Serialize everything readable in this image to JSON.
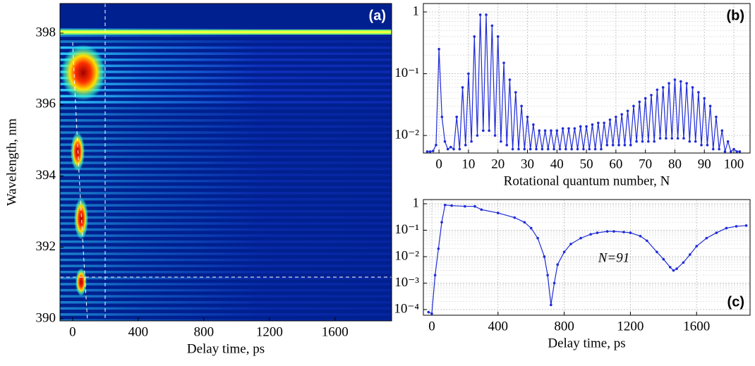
{
  "chart_data": [
    {
      "type": "heatmap",
      "panel_label": "(a)",
      "xlabel": "Delay time, ps",
      "ylabel": "Wavelength, nm",
      "xlim": [
        -77,
        1945
      ],
      "ylim": [
        389.94,
        398.83
      ],
      "xticks": [
        0,
        400,
        800,
        1200,
        1600
      ],
      "yticks": [
        390,
        392,
        394,
        396,
        398
      ]
    },
    {
      "type": "line",
      "panel_label": "(b)",
      "xlabel": "Rotational quantum number, N",
      "log_y": true,
      "grid": true,
      "color": "#1f2bd6",
      "xlim": [
        -5.3,
        105.5
      ],
      "ylim": [
        0.0052,
        1.37
      ],
      "xticks": [
        0,
        10,
        20,
        30,
        40,
        50,
        60,
        70,
        80,
        90,
        100
      ],
      "yticks": [
        {
          "value": 0.01,
          "label": "10⁻²"
        },
        {
          "value": 0.1,
          "label": "10⁻¹"
        },
        1
      ],
      "x": [
        -4,
        -3,
        -2,
        -1,
        0,
        1,
        2,
        3,
        4,
        5,
        6,
        7,
        8,
        9,
        10,
        11,
        12,
        13,
        14,
        15,
        16,
        17,
        18,
        19,
        20,
        21,
        22,
        23,
        24,
        25,
        26,
        27,
        28,
        29,
        30,
        31,
        32,
        33,
        34,
        35,
        36,
        37,
        38,
        39,
        40,
        41,
        42,
        43,
        44,
        45,
        46,
        47,
        48,
        49,
        50,
        51,
        52,
        53,
        54,
        55,
        56,
        57,
        58,
        59,
        60,
        61,
        62,
        63,
        64,
        65,
        66,
        67,
        68,
        69,
        70,
        71,
        72,
        73,
        74,
        75,
        76,
        77,
        78,
        79,
        80,
        81,
        82,
        83,
        84,
        85,
        86,
        87,
        88,
        89,
        90,
        91,
        92,
        93,
        94,
        95,
        96,
        97,
        98,
        99,
        100,
        101,
        102
      ],
      "values": [
        0.0055,
        0.0055,
        0.0056,
        0.007,
        0.25,
        0.02,
        0.008,
        0.006,
        0.0065,
        0.006,
        0.02,
        0.006,
        0.06,
        0.007,
        0.1,
        0.008,
        0.4,
        0.01,
        0.9,
        0.012,
        0.9,
        0.012,
        0.6,
        0.01,
        0.4,
        0.008,
        0.15,
        0.007,
        0.08,
        0.006,
        0.05,
        0.006,
        0.03,
        0.006,
        0.02,
        0.006,
        0.015,
        0.006,
        0.012,
        0.006,
        0.012,
        0.006,
        0.012,
        0.006,
        0.012,
        0.006,
        0.013,
        0.006,
        0.013,
        0.006,
        0.013,
        0.006,
        0.014,
        0.006,
        0.014,
        0.006,
        0.015,
        0.006,
        0.016,
        0.006,
        0.016,
        0.007,
        0.018,
        0.007,
        0.02,
        0.007,
        0.022,
        0.007,
        0.025,
        0.007,
        0.03,
        0.008,
        0.035,
        0.008,
        0.04,
        0.008,
        0.045,
        0.008,
        0.055,
        0.009,
        0.06,
        0.009,
        0.07,
        0.009,
        0.08,
        0.009,
        0.075,
        0.009,
        0.07,
        0.008,
        0.06,
        0.008,
        0.05,
        0.007,
        0.04,
        0.007,
        0.03,
        0.006,
        0.02,
        0.006,
        0.012,
        0.0055,
        0.008,
        0.0055,
        0.006,
        0.0055,
        0.0055
      ]
    },
    {
      "type": "line",
      "panel_label": "(c)",
      "xlabel": "Delay time, ps",
      "annotation": "N=91",
      "log_y": true,
      "grid": true,
      "color": "#1f2bd6",
      "xlim": [
        -51,
        1923
      ],
      "ylim": [
        6.1e-05,
        1.44
      ],
      "xticks": [
        0,
        400,
        800,
        1200,
        1600
      ],
      "yticks": [
        {
          "value": 0.0001,
          "label": "10⁻⁴"
        },
        {
          "value": 0.001,
          "label": "10⁻³"
        },
        {
          "value": 0.01,
          "label": "10⁻²"
        },
        {
          "value": 0.1,
          "label": "10⁻¹"
        },
        1
      ],
      "x": [
        -20,
        0,
        20,
        40,
        60,
        80,
        120,
        200,
        260,
        300,
        400,
        500,
        560,
        600,
        640,
        680,
        700,
        720,
        740,
        760,
        800,
        840,
        900,
        960,
        1000,
        1060,
        1100,
        1160,
        1200,
        1260,
        1300,
        1360,
        1400,
        1440,
        1460,
        1480,
        1520,
        1560,
        1600,
        1660,
        1720,
        1780,
        1840,
        1900
      ],
      "values": [
        8e-05,
        7e-05,
        0.002,
        0.02,
        0.2,
        0.9,
        0.85,
        0.8,
        0.8,
        0.6,
        0.45,
        0.3,
        0.2,
        0.12,
        0.05,
        0.01,
        0.002,
        0.00015,
        0.001,
        0.005,
        0.015,
        0.03,
        0.05,
        0.07,
        0.08,
        0.09,
        0.09,
        0.085,
        0.08,
        0.06,
        0.04,
        0.015,
        0.008,
        0.004,
        0.003,
        0.0035,
        0.006,
        0.012,
        0.025,
        0.05,
        0.08,
        0.12,
        0.14,
        0.15
      ]
    }
  ]
}
